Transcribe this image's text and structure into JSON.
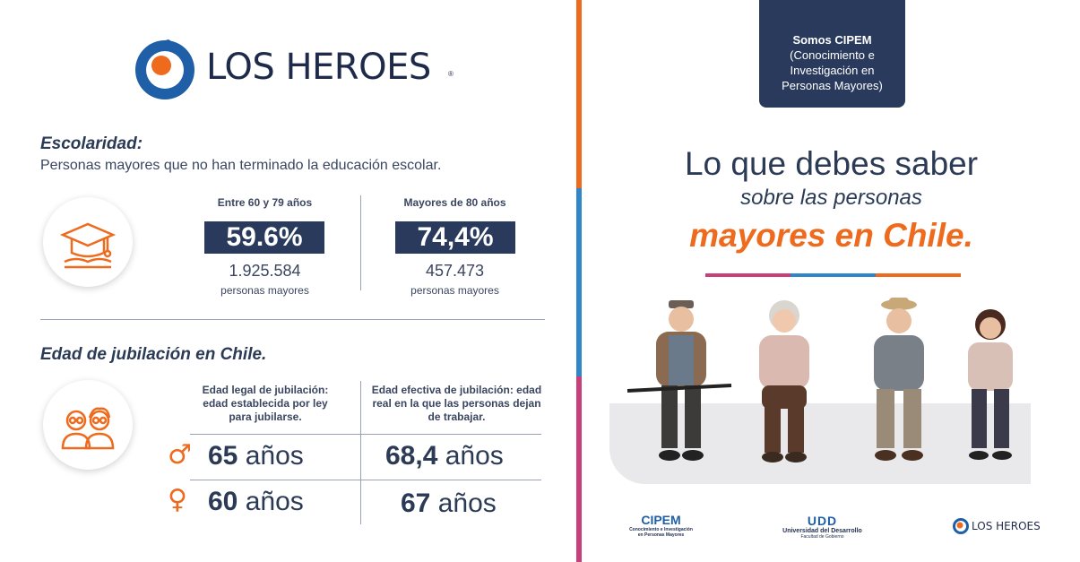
{
  "brand": {
    "name": "LOS HEROES",
    "reg": "®"
  },
  "schooling": {
    "title": "Escolaridad:",
    "subtitle": "Personas mayores que no han terminado la educación escolar.",
    "groups": [
      {
        "label": "Entre 60 y 79 años",
        "percent": "59.6%",
        "count": "1.925.584",
        "unit": "personas mayores"
      },
      {
        "label": "Mayores de 80 años",
        "percent": "74,4%",
        "count": "457.473",
        "unit": "personas mayores"
      }
    ]
  },
  "retirement": {
    "title": "Edad de jubilación en Chile.",
    "legal_header": "Edad legal de jubilación: edad establecida por ley para jubilarse.",
    "effective_header": "Edad efectiva de jubilación: edad real en la que las personas dejan de trabajar.",
    "rows": [
      {
        "symbol": "♂",
        "legal_num": "65",
        "legal_unit": "años",
        "effective_num": "68,4",
        "effective_unit": "años"
      },
      {
        "symbol": "♀",
        "legal_num": "60",
        "legal_unit": "años",
        "effective_num": "67",
        "effective_unit": "años"
      }
    ]
  },
  "cipem_box": {
    "title": "Somos CIPEM",
    "line1": "(Conocimiento e",
    "line2": "Investigación en",
    "line3": "Personas Mayores)"
  },
  "headline": {
    "line1": "Lo que debes saber",
    "line2": "sobre las personas",
    "line3": "mayores en Chile."
  },
  "footer": {
    "cipem_name": "CIPEM",
    "cipem_sub1": "Conocimiento e Investigación",
    "cipem_sub2": "en Personas Mayores",
    "udd_mark": "UDD",
    "udd_name": "Universidad del Desarrollo",
    "udd_sub": "Facultad de Gobierno",
    "heroes_name": "LOS HEROES"
  },
  "colors": {
    "navy": "#2a3a5c",
    "orange": "#ee6b1e",
    "blue": "#2f86c8",
    "magenta": "#c8407a"
  }
}
